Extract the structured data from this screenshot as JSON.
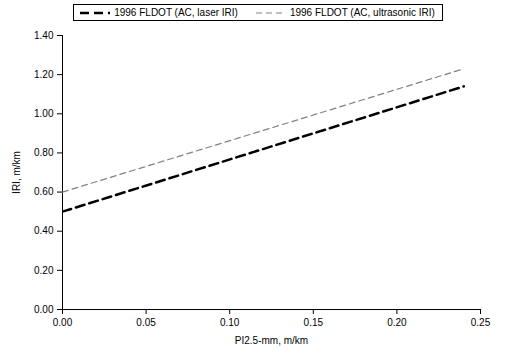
{
  "chart_data": {
    "type": "line",
    "x_label": "PI2.5-mm, m/km",
    "y_label": "IRI, m/km",
    "legend": "top",
    "grid": false,
    "xlim": [
      0,
      0.25
    ],
    "xticks": [
      {
        "value": 0,
        "label": "0.00"
      },
      {
        "value": 0.05,
        "label": "0.05"
      },
      {
        "value": 0.1,
        "label": "0.10"
      },
      {
        "value": 0.15,
        "label": "0.15"
      },
      {
        "value": 0.2,
        "label": "0.20"
      },
      {
        "value": 0.25,
        "label": "0.25"
      }
    ],
    "ylim": [
      0,
      1.4
    ],
    "yticks": [
      {
        "value": 0,
        "label": "0.00"
      },
      {
        "value": 0.2,
        "label": "0.20"
      },
      {
        "value": 0.4,
        "label": "0.40"
      },
      {
        "value": 0.6,
        "label": "0.60"
      },
      {
        "value": 0.8,
        "label": "0.80"
      },
      {
        "value": 1,
        "label": "1.00"
      },
      {
        "value": 1.2,
        "label": "1.20"
      },
      {
        "value": 1.4,
        "label": "1.40"
      }
    ],
    "series": [
      {
        "name": "1996 FLDOT (AC, laser IRI)",
        "color": "#000000",
        "line_style": "dashed",
        "x": [
          0,
          0.24
        ],
        "values": [
          0.5,
          1.14
        ]
      },
      {
        "name": "1996 FLDOT (AC, ultrasonic IRI)",
        "color": "#808080",
        "line_style": "dashed",
        "x": [
          0,
          0.24
        ],
        "values": [
          0.6,
          1.23
        ]
      }
    ]
  }
}
